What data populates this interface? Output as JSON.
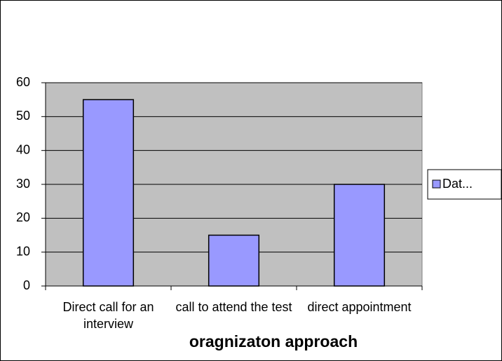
{
  "chart_data": {
    "type": "bar",
    "x_label": "oragnizaton approach",
    "categories": [
      "Direct call for an interview",
      "call to attend the test",
      "direct appointment"
    ],
    "series": [
      {
        "name": "Dat...",
        "color": "#9999ff",
        "values": [
          55,
          15,
          30
        ]
      }
    ],
    "ylim": [
      0,
      60
    ],
    "yticks": [
      0,
      10,
      20,
      30,
      40,
      50,
      60
    ],
    "grid": true,
    "legend": "right"
  }
}
